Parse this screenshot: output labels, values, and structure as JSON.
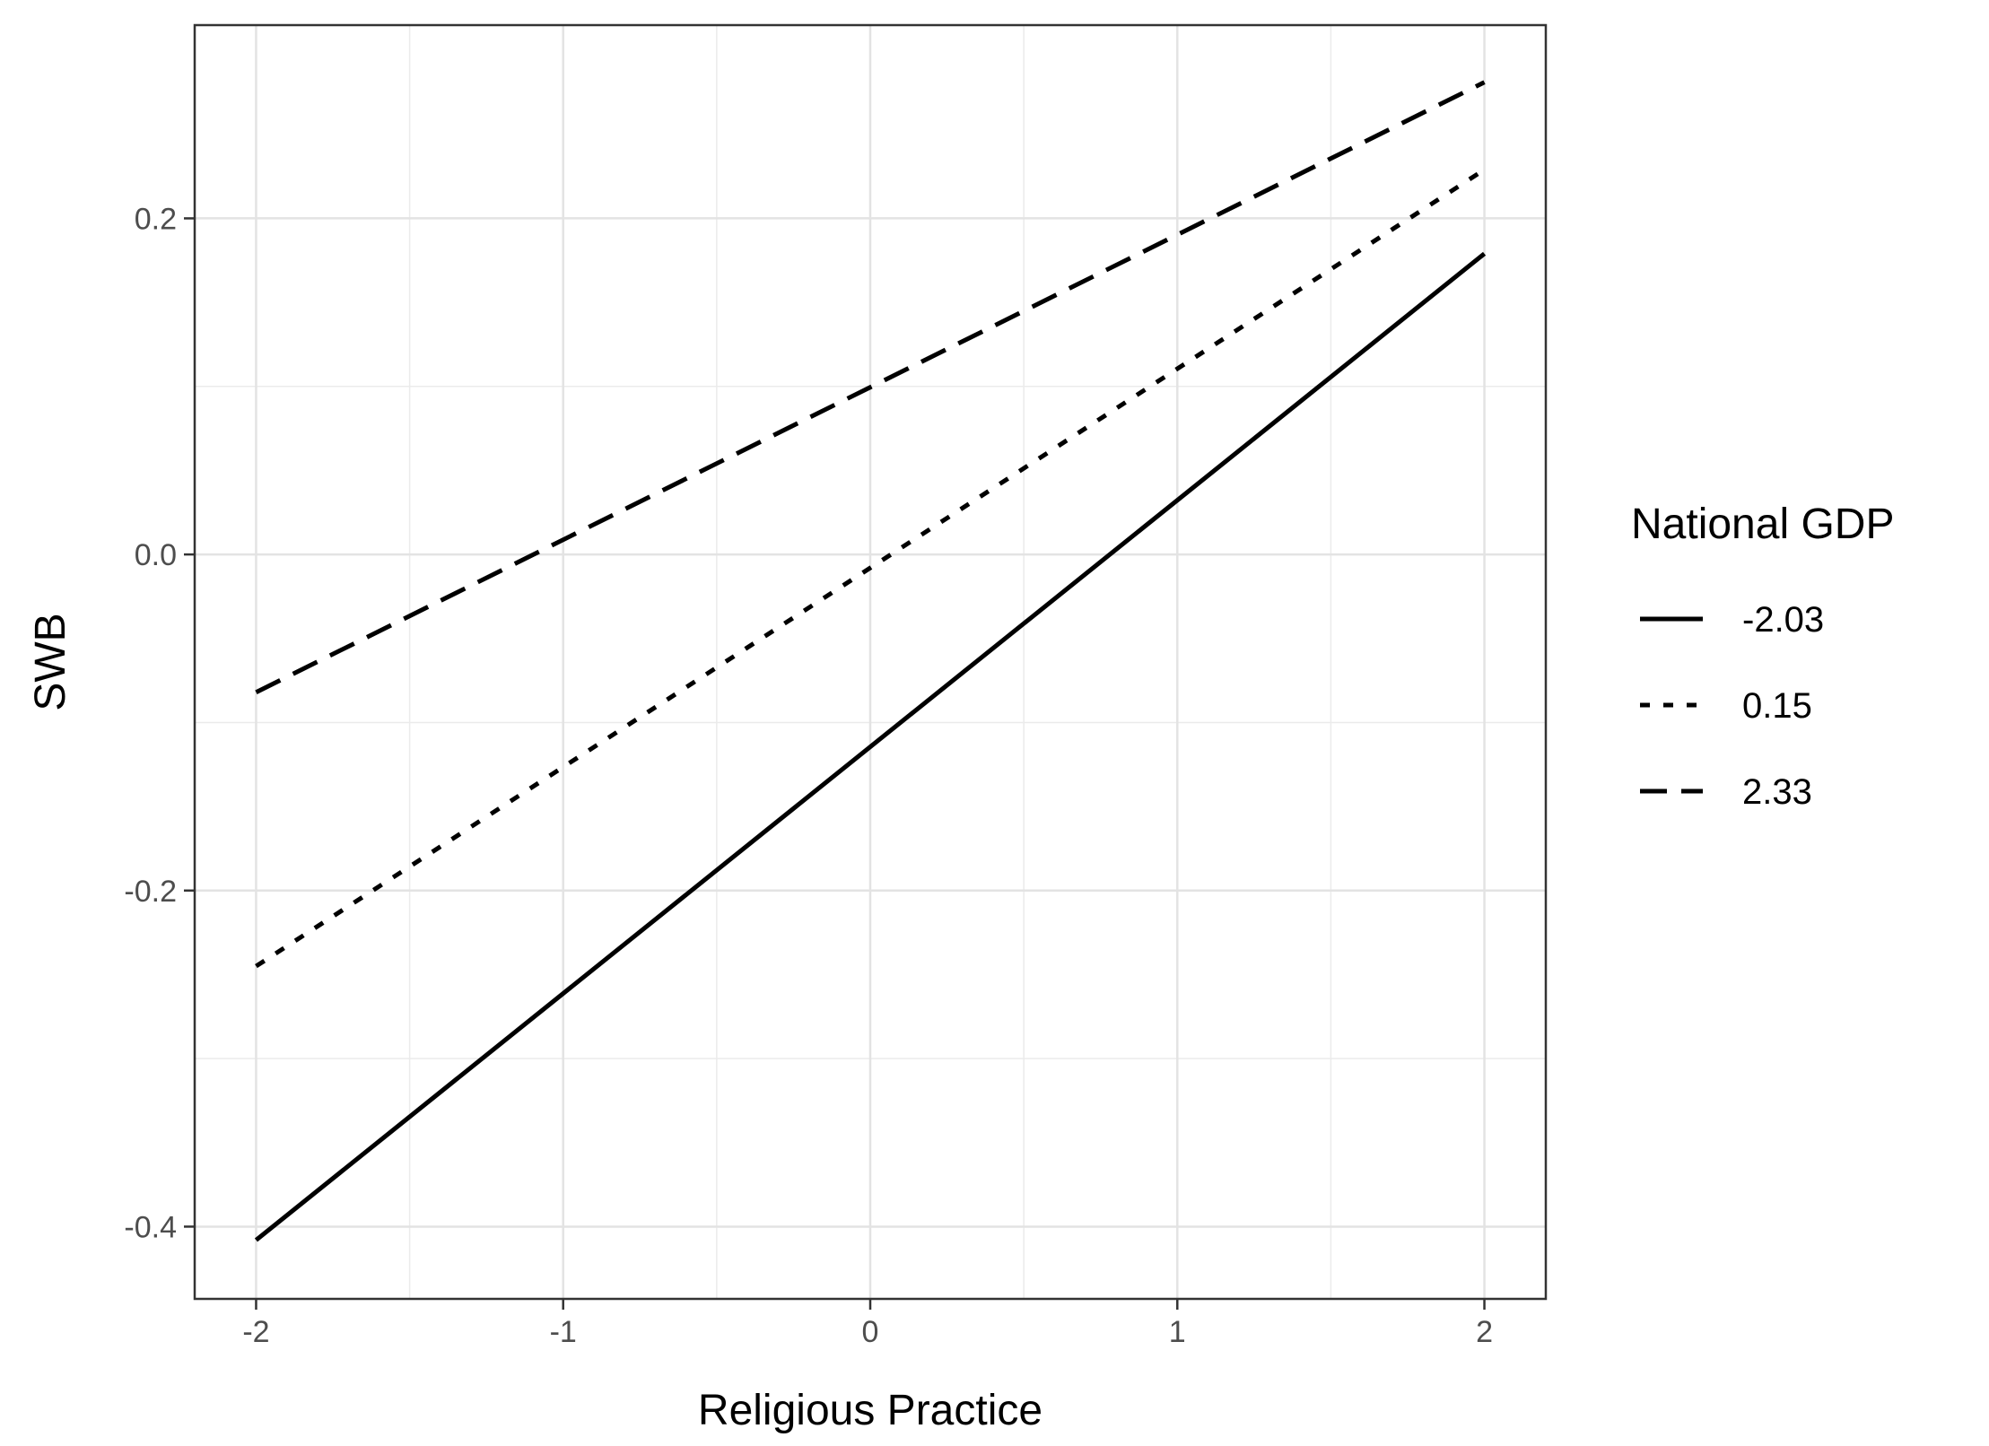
{
  "chart_data": {
    "type": "line",
    "xlabel": "Religious Practice",
    "ylabel": "SWB",
    "xlim": [
      -2.2,
      2.2
    ],
    "ylim": [
      -0.443,
      0.315
    ],
    "x_ticks": [
      -2,
      -1,
      0,
      1,
      2
    ],
    "x_tick_labels": [
      "-2",
      "-1",
      "0",
      "1",
      "2"
    ],
    "y_ticks": [
      -0.4,
      -0.2,
      0.0,
      0.2
    ],
    "y_tick_labels": [
      "-0.4",
      "-0.2",
      "0.0",
      "0.2"
    ],
    "grid": true,
    "legend": {
      "title": "National GDP",
      "position": "right"
    },
    "series": [
      {
        "name": "-2.03",
        "linetype": "solid",
        "color": "#000000",
        "x": [
          -2,
          2
        ],
        "y": [
          -0.408,
          0.179
        ]
      },
      {
        "name": "0.15",
        "linetype": "dotted",
        "color": "#000000",
        "x": [
          -2,
          2
        ],
        "y": [
          -0.245,
          0.229
        ]
      },
      {
        "name": "2.33",
        "linetype": "dashed",
        "color": "#000000",
        "x": [
          -2,
          2
        ],
        "y": [
          -0.082,
          0.281
        ]
      }
    ]
  }
}
